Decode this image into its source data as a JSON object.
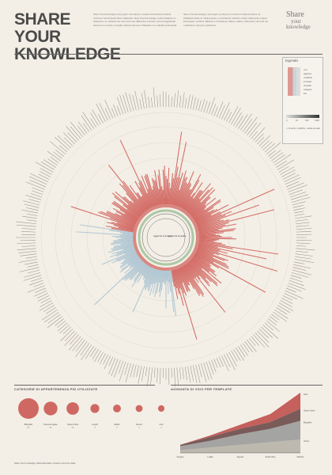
{
  "header": {
    "title": "SHARE YOUR KNOWLEDGE",
    "logo_line1": "Share",
    "logo_line2": "your",
    "logo_line3": "knowledge",
    "intro_left": "Share Your Knowledge è un progetto che riunisce contenuti di istituzioni culturali attraverso l'enciclopedia libera Wikipedia. Share Your Knowledge, Grafica Immersa, le istituzioni e le comunità che concorrono alla diffusione, il prestito, gli incoraggiamenti messi al loro servizio ai luoghi culturali attraverso Wikipedia e le comunità partecipanti.",
    "intro_right": "Share Your Knowledge è un progetto promosso da Creative Commons Italia e da Wikimedia Italia, in collaborazione con istituzioni culturali, archivi, biblioteche e musei. Partecipano: Archivio, Biblioteca, Fondazione, Museo, Istituto, Università e altri enti che condividono il proprio patrimonio."
  },
  "legend": {
    "title": "legenda",
    "items": [
      "voci",
      "aggiunte",
      "modifiche",
      "immagini",
      "template",
      "categorie",
      "link"
    ],
    "scale_labels": [
      "0",
      "10",
      "100",
      "1000"
    ],
    "note": "n. di utenti, modifiche, media annuale"
  },
  "radial": {
    "center_left": "Aggiunta immagini",
    "center_right": "Aggiunta template"
  },
  "sections": {
    "categories_title": "CATEGORIE DI APPARTENENZA PIÙ UTILIZZATE",
    "templates_title": "AGGIUNTA DI VOCI PER TEMPLATE"
  },
  "bubbles": [
    {
      "label": "Biografie",
      "value": 84
    },
    {
      "label": "Persone legate",
      "value": 31
    },
    {
      "label": "Opere d'arte",
      "value": 24
    },
    {
      "label": "Luoghi",
      "value": 9
    },
    {
      "label": "Edifici",
      "value": 6
    },
    {
      "label": "Eventi",
      "value": 4
    },
    {
      "label": "Libri",
      "value": 3
    }
  ],
  "chart_data": {
    "type": "area",
    "title": "AGGIUNTA DI VOCI PER TEMPLATE",
    "categories": [
      "Giugno",
      "Luglio",
      "Agosto",
      "Settembre",
      "Ottobre"
    ],
    "series": [
      {
        "name": "Monumenti",
        "values": [
          2,
          4,
          6,
          8,
          10
        ],
        "color": "#b8b2a8"
      },
      {
        "name": "Bio",
        "values": [
          3,
          5,
          8,
          10,
          14
        ],
        "color": "#9b9b9b"
      },
      {
        "name": "Artwork",
        "values": [
          1,
          3,
          4,
          5,
          9
        ],
        "color": "#6b4a4a"
      },
      {
        "name": "Opere",
        "values": [
          0,
          1,
          3,
          6,
          12
        ],
        "color": "#c0504d"
      }
    ],
    "series_labels": [
      "Anime",
      "Biografie",
      "Opere d'arte",
      "Altro"
    ],
    "ylim": [
      0,
      45
    ]
  },
  "colors": {
    "bg": "#f3efe6",
    "red": "#c8504b",
    "blue": "#9fb9c9",
    "dark": "#4a4a4a"
  },
  "footer": {
    "credits": "Share Your Knowledge / Wikimedia Italia / Creative Commons Italia"
  }
}
